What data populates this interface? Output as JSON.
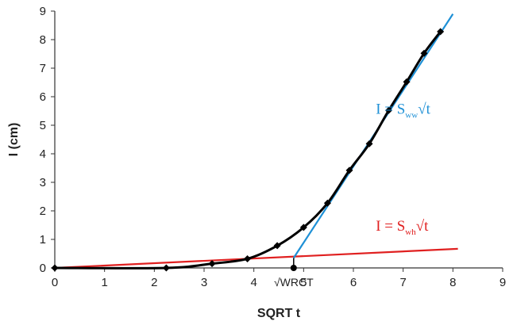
{
  "chart_data": {
    "type": "line",
    "xlabel": "SQRT t",
    "ylabel": "I (cm)",
    "xlim": [
      0,
      9
    ],
    "ylim": [
      0,
      9
    ],
    "xticks": [
      "0",
      "1",
      "2",
      "3",
      "4",
      "5",
      "6",
      "7",
      "8",
      "9"
    ],
    "yticks": [
      "0",
      "1",
      "2",
      "3",
      "4",
      "5",
      "6",
      "7",
      "8",
      "9"
    ],
    "grid": false,
    "colors": {
      "data": "#000000",
      "wetting_line": "#1e90d6",
      "wh_line": "#e02020",
      "ww_label": "#1e90d6",
      "wh_label": "#e02020"
    },
    "series": [
      {
        "type": "line+markers",
        "values": [
          {
            "x": 0.0,
            "y": 0.0
          },
          {
            "x": 2.24,
            "y": 0.0
          },
          {
            "x": 3.16,
            "y": 0.15
          },
          {
            "x": 3.87,
            "y": 0.32
          },
          {
            "x": 4.47,
            "y": 0.78
          },
          {
            "x": 5.0,
            "y": 1.42
          },
          {
            "x": 5.48,
            "y": 2.27
          },
          {
            "x": 5.92,
            "y": 3.42
          },
          {
            "x": 6.32,
            "y": 4.35
          },
          {
            "x": 6.71,
            "y": 5.52
          },
          {
            "x": 7.07,
            "y": 6.52
          },
          {
            "x": 7.42,
            "y": 7.52
          },
          {
            "x": 7.75,
            "y": 8.28
          }
        ]
      },
      {
        "type": "line",
        "values": [
          {
            "x": 4.8,
            "y": 0.35
          },
          {
            "x": 8.0,
            "y": 8.9
          }
        ]
      },
      {
        "type": "line",
        "values": [
          {
            "x": 0.0,
            "y": 0.0
          },
          {
            "x": 8.1,
            "y": 0.67
          }
        ]
      }
    ],
    "annotations": {
      "ww": {
        "prefix": "I = S",
        "sub": "ww",
        "suffix": "√t",
        "x": 6.45,
        "y": 5.4
      },
      "wh": {
        "prefix": "I = S",
        "sub": "wh",
        "suffix": "√t",
        "x": 6.45,
        "y": 1.3
      },
      "wrct": {
        "label": "√WRCT",
        "x": 4.8
      }
    }
  }
}
